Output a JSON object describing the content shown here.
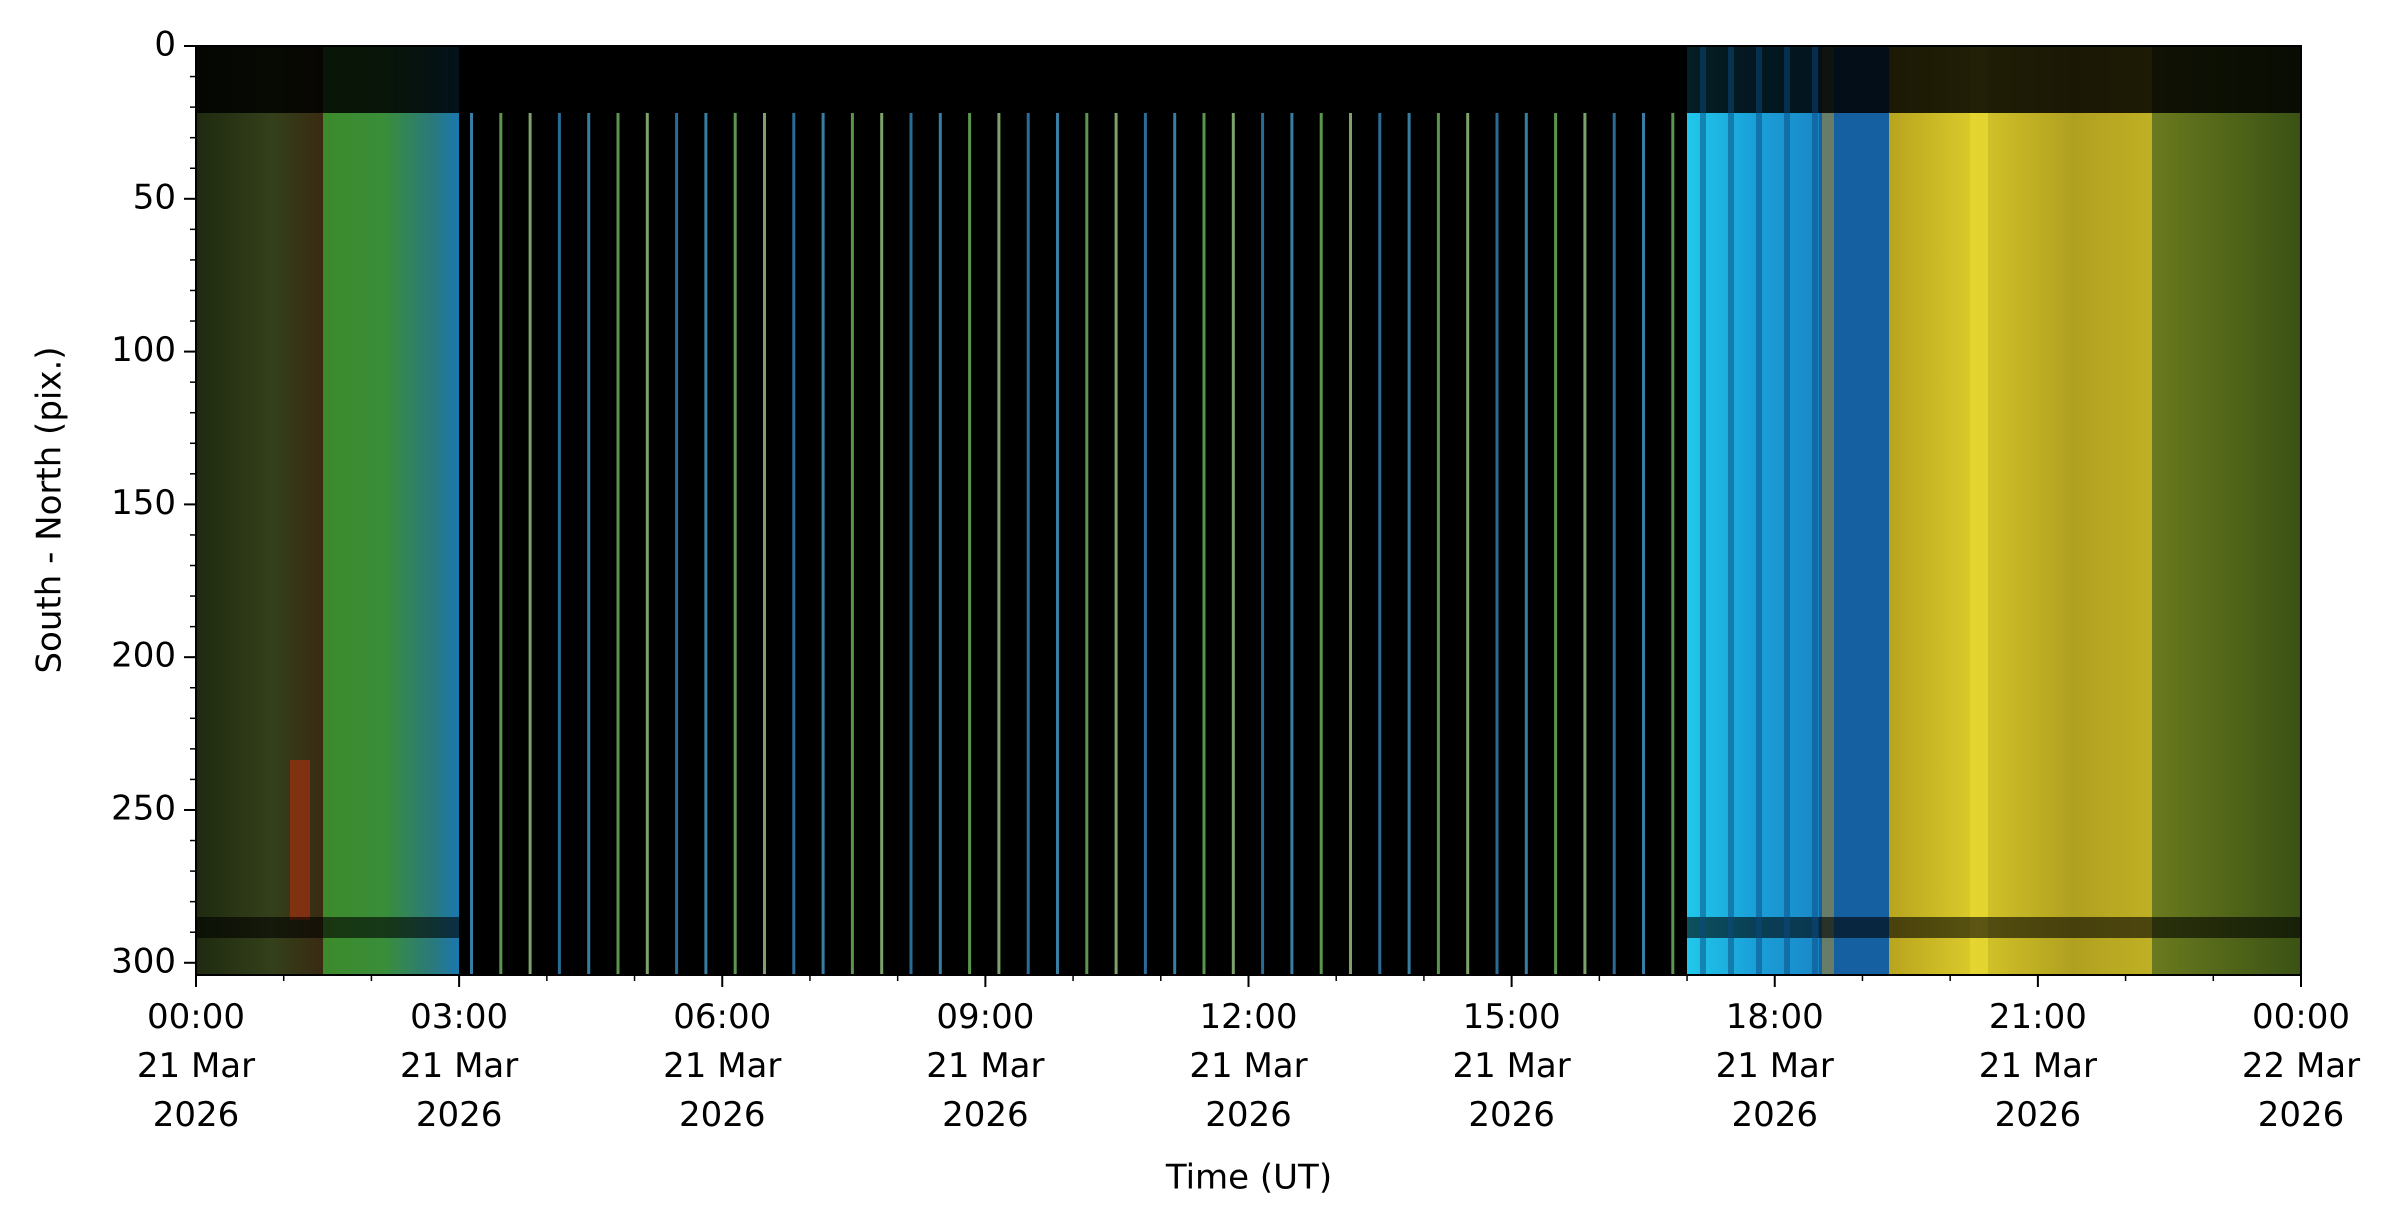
{
  "chart_data": {
    "type": "keogram",
    "x_label": "Time (UT)",
    "y_label": "South - North (pix.)",
    "xlim": [
      0,
      24
    ],
    "xticks": [
      {
        "value": 0,
        "label": "00:00\n21 Mar\n2026"
      },
      {
        "value": 3,
        "label": "03:00\n21 Mar\n2026"
      },
      {
        "value": 6,
        "label": "06:00\n21 Mar\n2026"
      },
      {
        "value": 9,
        "label": "09:00\n21 Mar\n2026"
      },
      {
        "value": 12,
        "label": "12:00\n21 Mar\n2026"
      },
      {
        "value": 15,
        "label": "15:00\n21 Mar\n2026"
      },
      {
        "value": 18,
        "label": "18:00\n21 Mar\n2026"
      },
      {
        "value": 21,
        "label": "21:00\n21 Mar\n2026"
      },
      {
        "value": 24,
        "label": "00:00\n22 Mar\n2026"
      }
    ],
    "x_minor_step": 1,
    "ylim": [
      304,
      0
    ],
    "yticks": [
      0,
      50,
      100,
      150,
      200,
      250,
      300
    ],
    "y_minor_step": 10
  }
}
